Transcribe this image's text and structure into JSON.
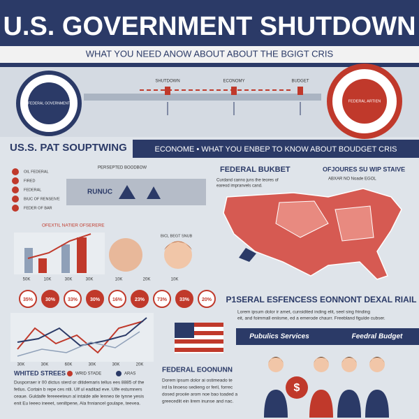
{
  "header": {
    "title": "U.S. GOVERNMENT SHUTDOWN",
    "subtitle": "WHAT YOU NEED ANOW ABOUT ABOUT THE BGIGT CRIS"
  },
  "timeline": {
    "left_seal": "FEDERAL GOVERNMENT",
    "right_seal": "FEDERAL ARTIEN",
    "labels": [
      "SHUTDOWN",
      "ECONOMY",
      "BUDGET"
    ]
  },
  "banner": {
    "left": "US.S. PAT SOUPTWING",
    "right": "ECONOME • WHAT YOU ENBEP TO KNOW ABOUT BOUDGET CRIS"
  },
  "left_panel": {
    "legend": [
      "OIL FEDERAL",
      "FIRED",
      "FEDERAL",
      "BIUC OF RENSEIVE",
      "FEDER OF BAR"
    ],
    "heading": "PERSEPTED BOODBOW",
    "icons_label": "RUNUC",
    "chart_title": "OFEXTIL NATIER OFSERERE",
    "chart2_title": "BICL BEGT SNUB",
    "bar_axis": [
      "50K",
      "10K",
      "30K",
      "30K"
    ],
    "face_axis": [
      "10K",
      "20K",
      "10K"
    ]
  },
  "map": {
    "title": "FEDERAL BUKBET",
    "text": [
      "Curdand canno juns the teores of",
      "eareod impranvels cand."
    ],
    "side_title": "OFJOURES SU WIP STAIVE",
    "side_sub": "ABXAR NO Noade EGOL"
  },
  "percents": [
    "35%",
    "30%",
    "33%",
    "30%",
    "16%",
    "23%",
    "73%",
    "33%",
    "20%"
  ],
  "line_chart": {
    "x_labels": [
      "30K",
      "30K",
      "60K",
      "30K",
      "30K",
      "20K"
    ]
  },
  "bottom_left": {
    "title": "WHITED STREES",
    "legend": [
      "WRID STADE",
      "ARAS"
    ],
    "text": [
      "Dusporraer ir 00 dictus sterd or ditidemaris tellus ees 8885 of the",
      "fetlus. Cortain b repe ces ntli. Ulf ul eaditad eve. Ulfe estumners",
      "ceaue. Guldaife fereeeeteun al intalde alle lenneo tle tynne yesis",
      "enit Eu leeeo ineeet, seniltpene, Ala fnniancel goulape, teevea."
    ]
  },
  "bottom_mid": {
    "title": "FEDERAL EOONUNN",
    "text": [
      "Dorem ipsum dolor ai ostimeado te",
      "ird la linoeso sedieng or feril, forrec",
      "dosed prooiie arom noe bao toaded a",
      "greecedlit ein lirem inunse and nac."
    ]
  },
  "right": {
    "title": "P1SERAL ESFENCESS EONNONT DEXAL RIAIL",
    "text": [
      "Lorem ipsum dolor ir amet, cunsidited inding elit, seel sing frinding",
      "eit, and foimmall eniisme, ed a emerode chaurr. Freebland figulde cubser."
    ],
    "bar_left": "Pubulics Services",
    "bar_right": "Feedral Budget"
  }
}
